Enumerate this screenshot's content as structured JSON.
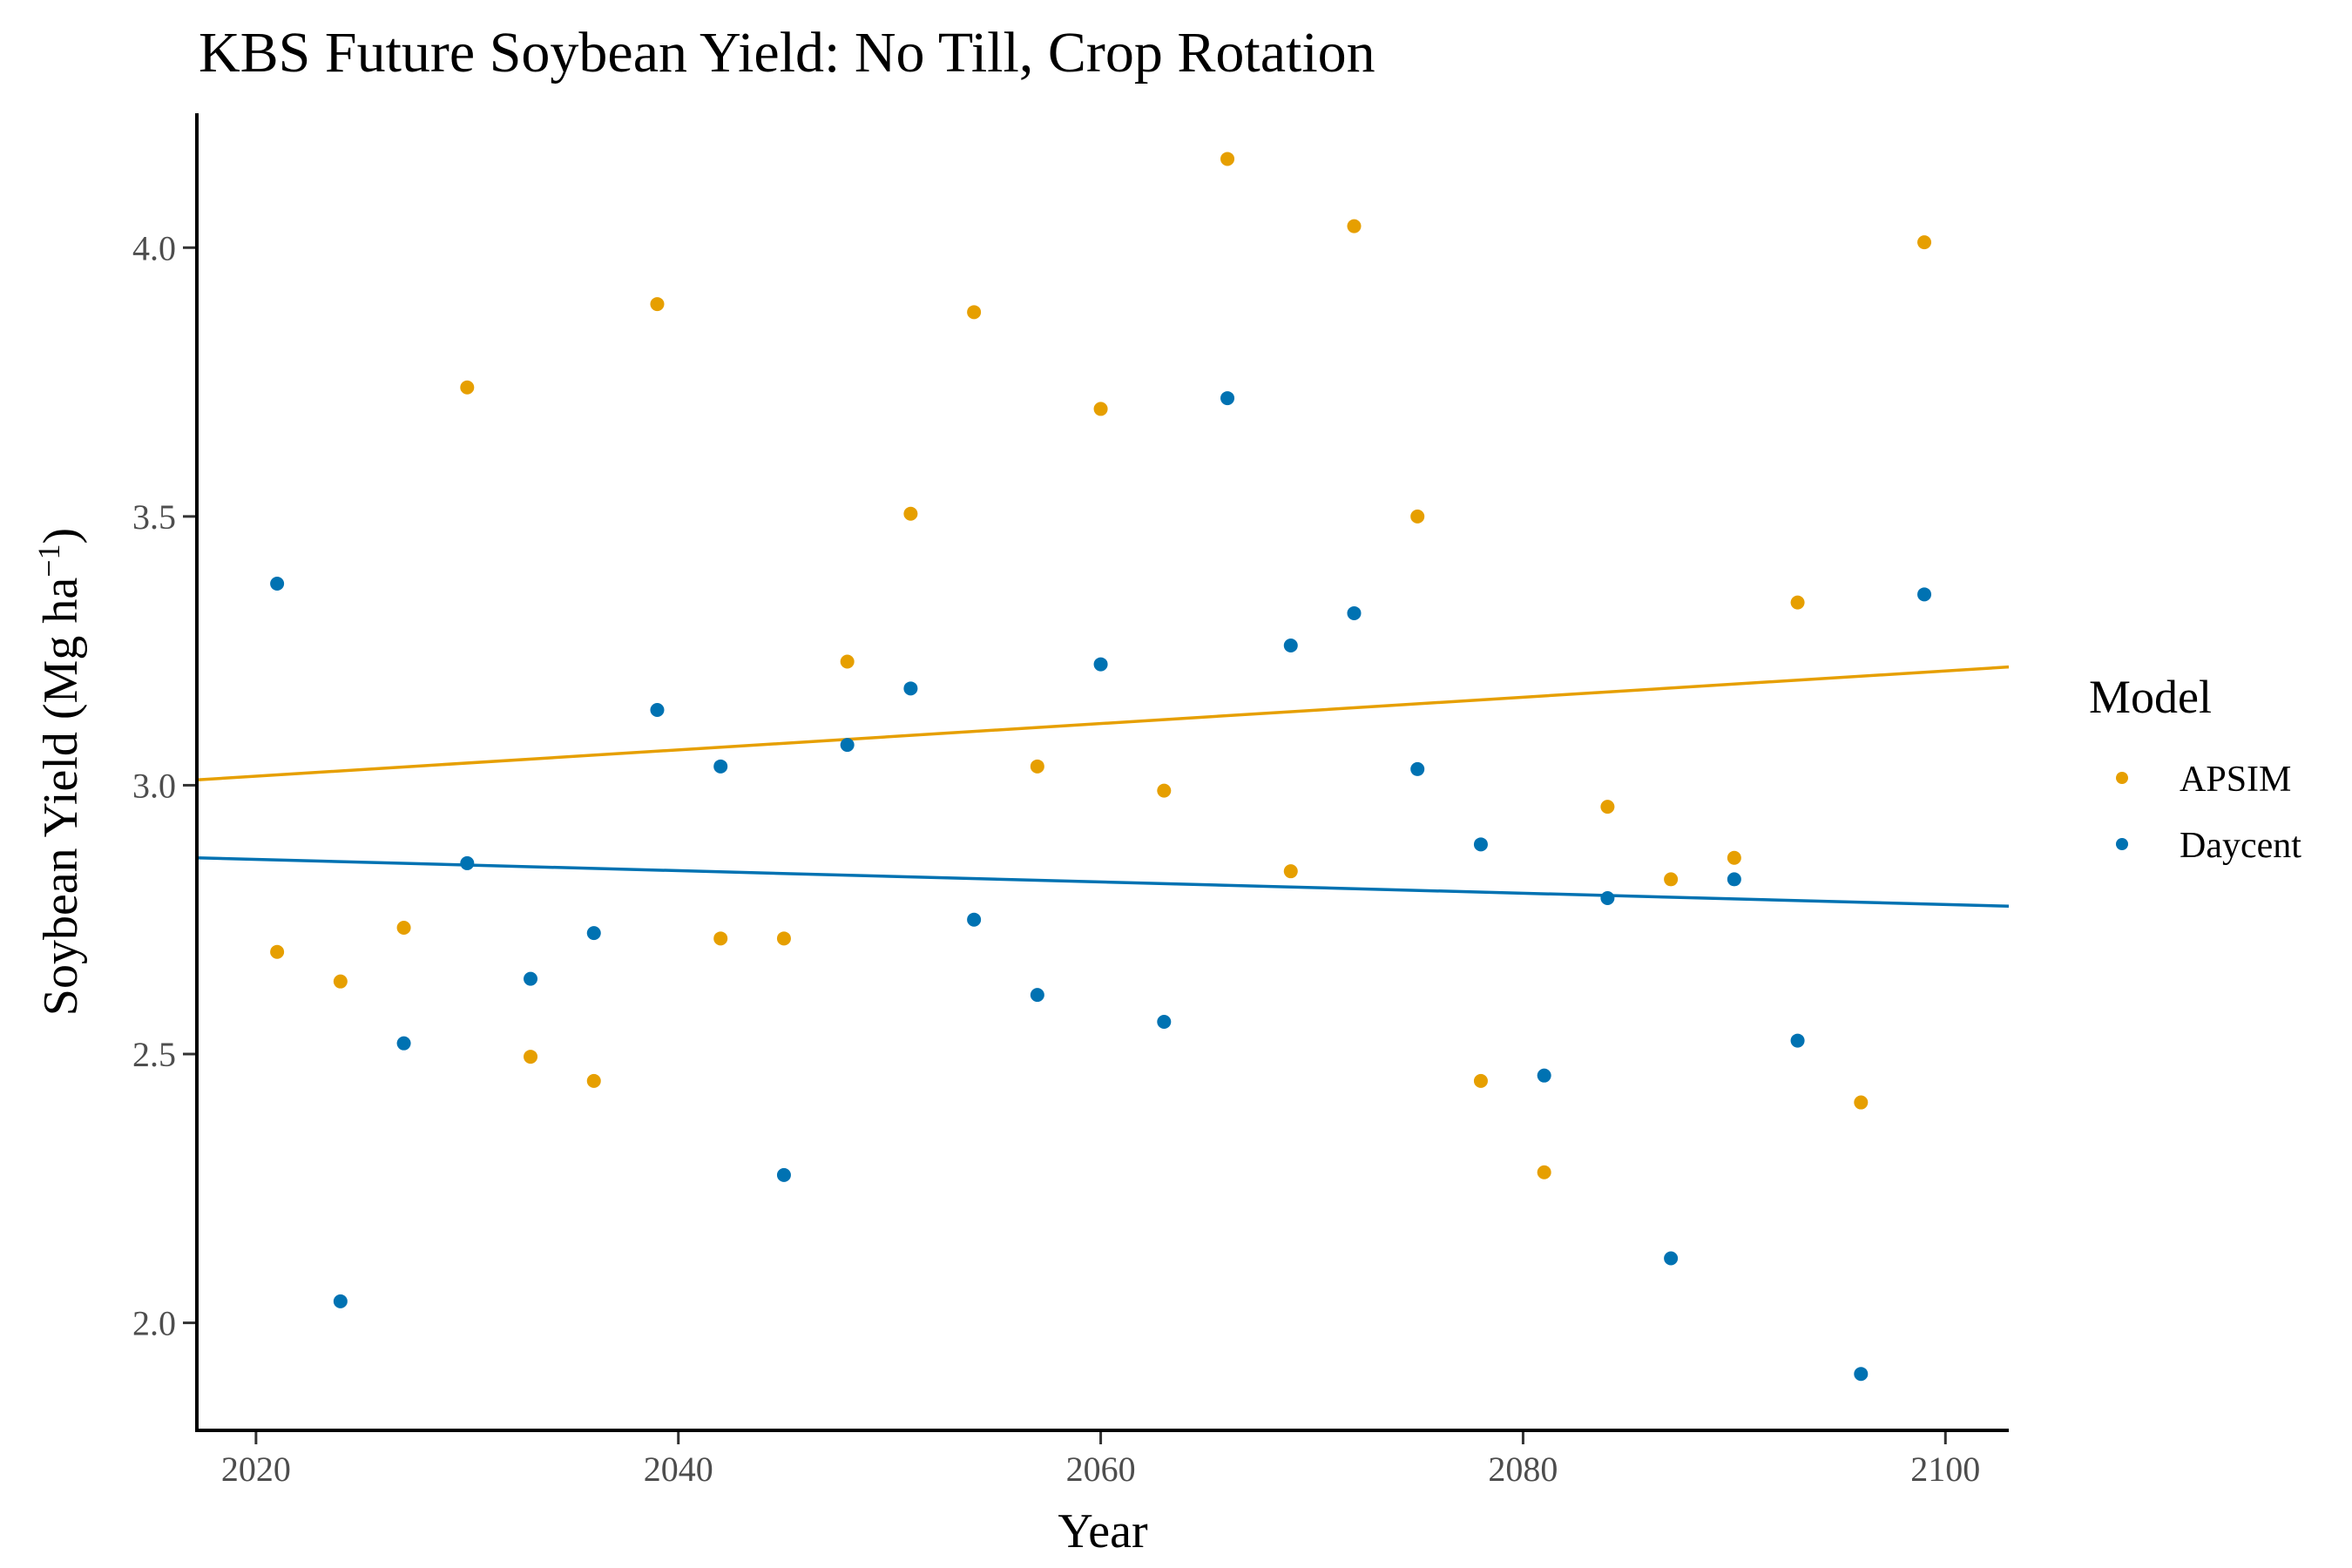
{
  "chart_data": {
    "type": "scatter",
    "title": "KBS Future Soybean Yield:  No Till, Crop Rotation",
    "xlabel": "Year",
    "ylabel": "Soybean Yield (Mg ha",
    "ylabel_superscript": "−1",
    "ylabel_close": ")",
    "xlim": [
      2017.2,
      2103.0
    ],
    "ylim": [
      1.8,
      4.25
    ],
    "x_ticks": [
      2020,
      2040,
      2060,
      2080,
      2100
    ],
    "y_ticks": [
      2.0,
      2.5,
      3.0,
      3.5,
      4.0
    ],
    "x_tick_labels": [
      "2020",
      "2040",
      "2060",
      "2080",
      "2100"
    ],
    "y_tick_labels": [
      "2.0",
      "2.5",
      "3.0",
      "3.5",
      "4.0"
    ],
    "grid": false,
    "legend": {
      "title": "Model",
      "placement": "right"
    },
    "series": [
      {
        "name": "APSIM",
        "color": "#E69F00",
        "points": [
          [
            2021,
            2.69
          ],
          [
            2024,
            2.635
          ],
          [
            2027,
            2.735
          ],
          [
            2030,
            3.74
          ],
          [
            2033,
            2.495
          ],
          [
            2036,
            2.45
          ],
          [
            2039,
            3.895
          ],
          [
            2042,
            2.715
          ],
          [
            2045,
            2.715
          ],
          [
            2048,
            3.23
          ],
          [
            2051,
            3.505
          ],
          [
            2054,
            3.88
          ],
          [
            2057,
            3.035
          ],
          [
            2060,
            3.7
          ],
          [
            2063,
            2.99
          ],
          [
            2066,
            4.165
          ],
          [
            2069,
            2.84
          ],
          [
            2072,
            4.04
          ],
          [
            2075,
            3.5
          ],
          [
            2078,
            2.45
          ],
          [
            2081,
            2.28
          ],
          [
            2084,
            2.96
          ],
          [
            2087,
            2.825
          ],
          [
            2090,
            2.865
          ],
          [
            2093,
            3.34
          ],
          [
            2096,
            2.41
          ],
          [
            2099,
            4.01
          ]
        ],
        "trend": {
          "x": [
            2017.2,
            2103.0
          ],
          "y": [
            3.01,
            3.22
          ]
        }
      },
      {
        "name": "Daycent",
        "color": "#0072B2",
        "points": [
          [
            2021,
            3.375
          ],
          [
            2024,
            2.04
          ],
          [
            2027,
            2.52
          ],
          [
            2030,
            2.855
          ],
          [
            2033,
            2.64
          ],
          [
            2036,
            2.725
          ],
          [
            2039,
            3.14
          ],
          [
            2042,
            3.035
          ],
          [
            2045,
            2.275
          ],
          [
            2048,
            3.075
          ],
          [
            2051,
            3.18
          ],
          [
            2054,
            2.75
          ],
          [
            2057,
            2.61
          ],
          [
            2060,
            3.225
          ],
          [
            2063,
            2.56
          ],
          [
            2066,
            3.72
          ],
          [
            2069,
            3.26
          ],
          [
            2072,
            3.32
          ],
          [
            2075,
            3.03
          ],
          [
            2078,
            2.89
          ],
          [
            2081,
            2.46
          ],
          [
            2084,
            2.79
          ],
          [
            2087,
            2.12
          ],
          [
            2090,
            2.825
          ],
          [
            2093,
            2.525
          ],
          [
            2096,
            1.905
          ],
          [
            2099,
            3.355
          ]
        ],
        "trend": {
          "x": [
            2017.2,
            2103.0
          ],
          "y": [
            2.865,
            2.775
          ]
        }
      }
    ]
  }
}
